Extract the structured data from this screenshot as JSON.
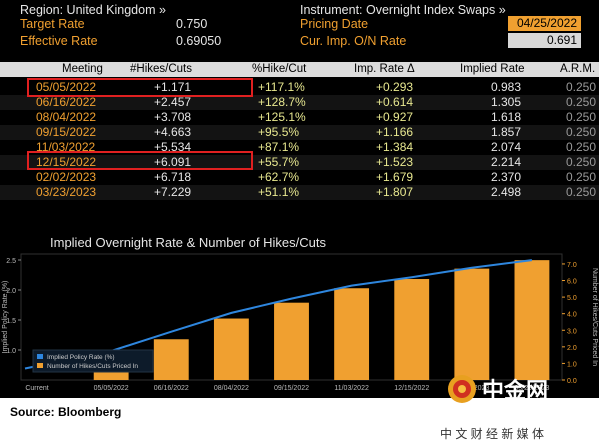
{
  "header": {
    "region_label": "Region: United Kingdom »",
    "instrument_label": "Instrument: Overnight Index Swaps »",
    "target_rate_label": "Target Rate",
    "target_rate_value": "0.750",
    "effective_rate_label": "Effective Rate",
    "effective_rate_value": "0.69050",
    "pricing_date_label": "Pricing Date",
    "pricing_date_value": "04/25/2022",
    "curr_imp_label": "Cur. Imp. O/N Rate",
    "curr_imp_value": "0.691"
  },
  "table": {
    "columns": [
      "Meeting",
      "#Hikes/Cuts",
      "%Hike/Cut",
      "Imp. Rate Δ",
      "Implied Rate",
      "A.R.M."
    ],
    "rows": [
      {
        "meeting": "05/05/2022",
        "hikes": "+1.171",
        "pct": "+117.1%",
        "delta": "+0.293",
        "implied": "0.983",
        "arm": "0.250"
      },
      {
        "meeting": "06/16/2022",
        "hikes": "+2.457",
        "pct": "+128.7%",
        "delta": "+0.614",
        "implied": "1.305",
        "arm": "0.250"
      },
      {
        "meeting": "08/04/2022",
        "hikes": "+3.708",
        "pct": "+125.1%",
        "delta": "+0.927",
        "implied": "1.618",
        "arm": "0.250"
      },
      {
        "meeting": "09/15/2022",
        "hikes": "+4.663",
        "pct": "+95.5%",
        "delta": "+1.166",
        "implied": "1.857",
        "arm": "0.250"
      },
      {
        "meeting": "11/03/2022",
        "hikes": "+5.534",
        "pct": "+87.1%",
        "delta": "+1.384",
        "implied": "2.074",
        "arm": "0.250"
      },
      {
        "meeting": "12/15/2022",
        "hikes": "+6.091",
        "pct": "+55.7%",
        "delta": "+1.523",
        "implied": "2.214",
        "arm": "0.250"
      },
      {
        "meeting": "02/02/2023",
        "hikes": "+6.718",
        "pct": "+62.7%",
        "delta": "+1.679",
        "implied": "2.370",
        "arm": "0.250"
      },
      {
        "meeting": "03/23/2023",
        "hikes": "+7.229",
        "pct": "+51.1%",
        "delta": "+1.807",
        "implied": "2.498",
        "arm": "0.250"
      }
    ]
  },
  "colors": {
    "accent_orange": "#f0a030",
    "line_blue": "#2e86de",
    "highlight_red": "#e02020",
    "background": "#000000"
  },
  "chart_data": {
    "type": "bar",
    "title": "Implied Overnight Rate & Number of Hikes/Cuts",
    "ylabel_left": "Implied Policy Rate (%)",
    "ylabel_right": "Number of Hikes/Cuts Priced In",
    "categories": [
      "Current",
      "05/05/2022",
      "06/16/2022",
      "08/04/2022",
      "09/15/2022",
      "11/03/2022",
      "12/15/2022",
      "02/02/2023",
      "03/23/2023"
    ],
    "series": [
      {
        "name": "Implied Policy Rate (%)",
        "type": "line",
        "axis": "left",
        "values": [
          0.691,
          0.983,
          1.305,
          1.618,
          1.857,
          2.074,
          2.214,
          2.37,
          2.498
        ]
      },
      {
        "name": "Number of Hikes/Cuts Priced In",
        "type": "bar",
        "axis": "right",
        "values": [
          0,
          1.171,
          2.457,
          3.708,
          4.663,
          5.534,
          6.091,
          6.718,
          7.229
        ]
      }
    ],
    "left_ticks": [
      "2.5",
      "2.0",
      "1.5",
      "1.0"
    ],
    "left_range": [
      0.5,
      2.6
    ],
    "right_ticks": [
      "7.0",
      "6.0",
      "5.0",
      "4.0",
      "3.0",
      "2.0",
      "1.0",
      "0.0"
    ],
    "right_range": [
      0,
      7.6
    ],
    "legend_position": "bottom-left"
  },
  "footer": {
    "source": "Source: Bloomberg"
  },
  "watermark": {
    "brand": "中金网",
    "url": "CNGOLD.COM",
    "tagline": "中 文 财 经 新 媒 体"
  }
}
